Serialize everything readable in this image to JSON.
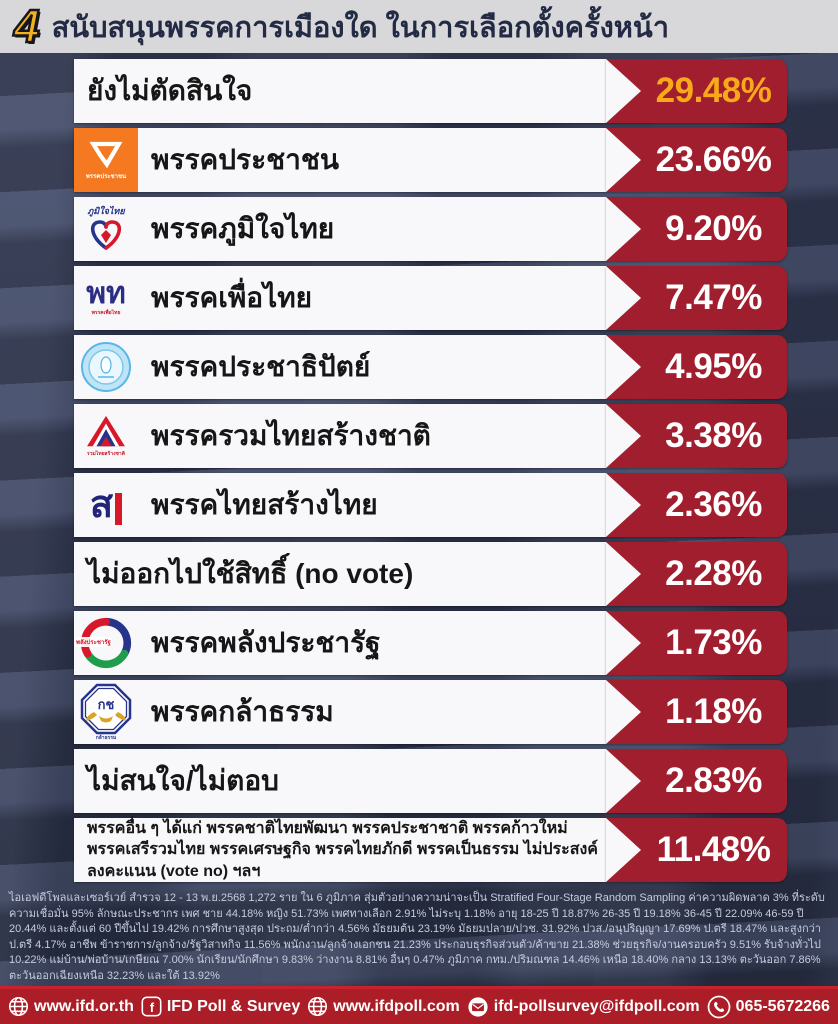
{
  "header": {
    "number": "4",
    "title": "สนับสนุนพรรคการเมืองใด ในการเลือกตั้งครั้งหน้า"
  },
  "colors": {
    "capsule_red": "#A01E2D",
    "footer_red": "#AC1E27",
    "gold_value": "#F7A81B",
    "background_navy": "#343B55",
    "header_gray": "#D8D8DA",
    "peoples_party_orange": "#F47920"
  },
  "rows": [
    {
      "label": "ยังไม่ตัดสินใจ",
      "value": "29.48%",
      "logo": "none",
      "value_color": "gold"
    },
    {
      "label": "พรรคประชาชน",
      "value": "23.66%",
      "logo": "peoples-party",
      "logo_caption": "พรรคประชาชน"
    },
    {
      "label": "พรรคภูมิใจไทย",
      "value": "9.20%",
      "logo": "bhumjaithai",
      "logo_caption": "ภูมิใจไทย"
    },
    {
      "label": "พรรคเพื่อไทย",
      "value": "7.47%",
      "logo": "pheu-thai",
      "logo_text": "พท",
      "logo_caption": "พรรคเพื่อไทย"
    },
    {
      "label": "พรรคประชาธิปัตย์",
      "value": "4.95%",
      "logo": "democrat"
    },
    {
      "label": "พรรครวมไทยสร้างชาติ",
      "value": "3.38%",
      "logo": "united-thai-nation",
      "logo_caption": "รวมไทยสร้างชาติ"
    },
    {
      "label": "พรรคไทยสร้างไทย",
      "value": "2.36%",
      "logo": "thai-sang-thai",
      "logo_text": "ส"
    },
    {
      "label": "ไม่ออกไปใช้สิทธิ์ (no vote)",
      "value": "2.28%",
      "logo": "none"
    },
    {
      "label": "พรรคพลังประชารัฐ",
      "value": "1.73%",
      "logo": "palang-pracharath",
      "logo_caption": "พลังประชารัฐ"
    },
    {
      "label": "พรรคกล้าธรรม",
      "value": "1.18%",
      "logo": "kla-tham",
      "logo_text": "กช",
      "logo_caption": "กล้าธรรม"
    },
    {
      "label": "ไม่สนใจ/ไม่ตอบ",
      "value": "2.83%",
      "logo": "none"
    },
    {
      "label": "พรรคอื่น ๆ ได้แก่ พรรคชาติไทยพัฒนา พรรคประชาชาติ พรรคก้าวใหม่ พรรคเสรีรวมไทย พรรคเศรษฐกิจ พรรคไทยภักดี พรรคเป็นธรรม ไม่ประสงค์ลงคะแนน (vote no) ฯลฯ",
      "value": "11.48%",
      "logo": "none",
      "small": true
    }
  ],
  "chart_data": {
    "type": "bar",
    "title": "สนับสนุนพรรคการเมืองใด ในการเลือกตั้งครั้งหน้า",
    "categories": [
      "ยังไม่ตัดสินใจ",
      "พรรคประชาชน",
      "พรรคภูมิใจไทย",
      "พรรคเพื่อไทย",
      "พรรคประชาธิปัตย์",
      "พรรครวมไทยสร้างชาติ",
      "พรรคไทยสร้างไทย",
      "ไม่ออกไปใช้สิทธิ์ (no vote)",
      "พรรคพลังประชารัฐ",
      "พรรคกล้าธรรม",
      "ไม่สนใจ/ไม่ตอบ",
      "พรรคอื่น ๆ"
    ],
    "values": [
      29.48,
      23.66,
      9.2,
      7.47,
      4.95,
      3.38,
      2.36,
      2.28,
      1.73,
      1.18,
      2.83,
      11.48
    ],
    "unit": "%",
    "orientation": "horizontal",
    "value_labels_shown": true
  },
  "methodology": "ไอเอฟดีโพลและเซอร์เวย์ สำรวจ 12 - 13  พ.ย.2568 1,272 ราย ใน 6 ภูมิภาค สุ่มตัวอย่างความน่าจะเป็น Stratified Four-Stage Random Sampling ค่าความผิดพลาด 3% ที่ระดับความเชื่อมั่น 95% ลักษณะประชากร เพศ ชาย 44.18% หญิง 51.73% เพศทางเลือก 2.91% ไม่ระบุ 1.18% อายุ 18-25 ปี 18.87% 26-35 ปี 19.18% 36-45 ปี 22.09% 46-59 ปี 20.44% และตั้งแต่ 60 ปีขึ้นไป 19.42% การศึกษาสูงสุด ประถม/ต่ำกว่า 4.56% มัธยมต้น 23.19% มัธยมปลาย/ปวช. 31.92% ปวส./อนุปริญญา 17.69% ป.ตรี 18.47% และสูงกว่า ป.ตรี 4.17% อาชีพ ข้าราชการ/ลูกจ้าง/รัฐวิสาหกิจ 11.56% พนักงาน/ลูกจ้างเอกชน 21.23% ประกอบธุรกิจส่วนตัว/ค้าขาย 21.38% ช่วยธุรกิจ/งานครอบครัว 9.51% รับจ้างทั่วไป 10.22% แม่บ้าน/พ่อบ้าน/เกษียณ 7.00% นักเรียน/นักศึกษา 9.83% ว่างงาน 8.81% อื่นๆ 0.47% ภูมิภาค กทม./ปริมณฑล 14.46% เหนือ 18.40% กลาง 13.13% ตะวันออก 7.86% ตะวันออกเฉียงเหนือ 32.23% และใต้ 13.92%",
  "footer": {
    "items": [
      {
        "icon": "globe-icon",
        "label": "www.ifd.or.th"
      },
      {
        "icon": "facebook-icon",
        "label": "IFD Poll & Survey"
      },
      {
        "icon": "globe-icon",
        "label": "www.ifdpoll.com"
      },
      {
        "icon": "email-icon",
        "label": "ifd-pollsurvey@ifdpoll.com"
      },
      {
        "icon": "phone-icon",
        "label": "065-5672266"
      }
    ]
  }
}
